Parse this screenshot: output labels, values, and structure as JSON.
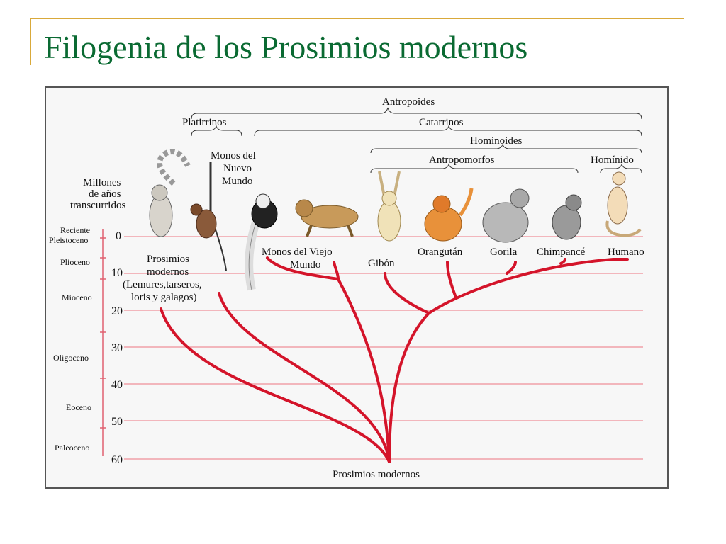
{
  "title": "Filogenia de los Prosimios modernos",
  "brackets": {
    "antropoides": "Antropoides",
    "platirrinos": "Platirrinos",
    "catarrinos": "Catarrinos",
    "hominoides": "Hominoides",
    "antropomorfos": "Antropomorfos",
    "hominido": "Homínido"
  },
  "axis": {
    "label_lines": [
      "Millones",
      "de años",
      "transcurridos"
    ],
    "ticks": [
      "0",
      "10",
      "20",
      "30",
      "40",
      "50",
      "60"
    ]
  },
  "epochs": [
    "Reciente",
    "Pleistoceno",
    "Plioceno",
    "Mioceno",
    "Oligoceno",
    "Eoceno",
    "Paleoceno"
  ],
  "taxa": {
    "prosimios_lines": [
      "Prosimios",
      "modernos",
      "(Lemures,tarseros,",
      "loris y galagos)"
    ],
    "nuevo_mundo_lines": [
      "Monos del",
      "Nuevo",
      "Mundo"
    ],
    "viejo_mundo_lines": [
      "Monos del Viejo",
      "Mundo"
    ],
    "gibon": "Gibón",
    "orangutan": "Orangután",
    "gorila": "Gorila",
    "chimpance": "Chimpancé",
    "humano": "Humano",
    "root": "Prosimios modernos"
  },
  "colors": {
    "tree": "#d4142a",
    "gridline": "#f0a0a8",
    "title": "#0a6a32",
    "accent": "#d9a93a"
  }
}
